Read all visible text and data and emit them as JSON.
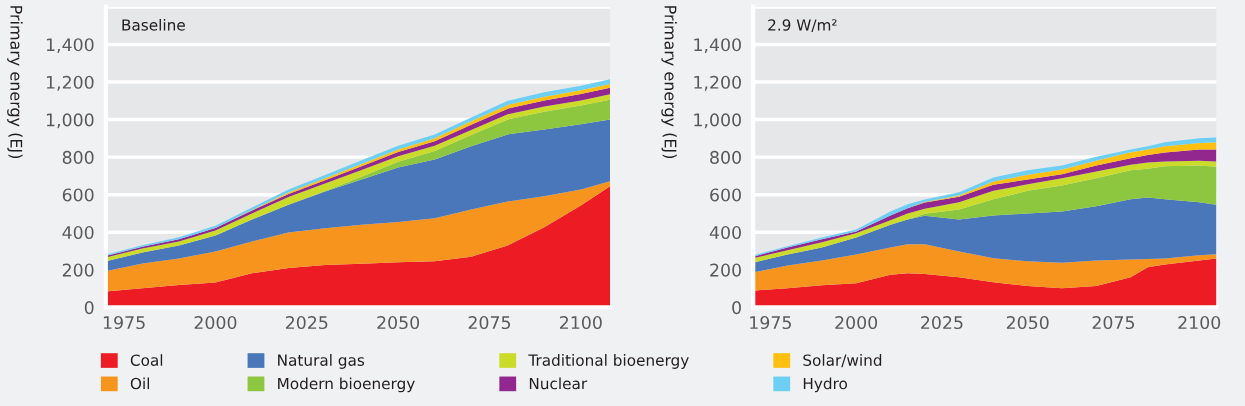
{
  "chart_data": [
    {
      "type": "area",
      "stacked": true,
      "title": "Baseline",
      "ylabel": "Primary energy (EJ)",
      "legend": "bottom",
      "grid": "y",
      "x": [
        1970,
        1980,
        1990,
        2000,
        2010,
        2020,
        2030,
        2040,
        2050,
        2060,
        2070,
        2080,
        2090,
        2100,
        2108
      ],
      "xlim": [
        1970,
        2108
      ],
      "xticks": [
        1975,
        2000,
        2025,
        2050,
        2075,
        2100
      ],
      "ylim": [
        0,
        1600
      ],
      "yticks": [
        {
          "value": 0,
          "label": "0"
        },
        {
          "value": 200,
          "label": "200"
        },
        {
          "value": 400,
          "label": "400"
        },
        {
          "value": 600,
          "label": "600"
        },
        {
          "value": 800,
          "label": "800"
        },
        {
          "value": 1000,
          "label": "1,000"
        },
        {
          "value": 1200,
          "label": "1,200"
        },
        {
          "value": 1400,
          "label": "1,400"
        },
        {
          "value": 1600,
          "label": null
        }
      ],
      "series": [
        {
          "name": "Coal",
          "color": "#ed1c24",
          "values": [
            85,
            102,
            119,
            132,
            181,
            209,
            226,
            232,
            240,
            245,
            270,
            330,
            426,
            543,
            645
          ]
        },
        {
          "name": "Oil",
          "color": "#f7941d",
          "values": [
            107,
            132,
            141,
            166,
            170,
            189,
            195,
            208,
            215,
            230,
            251,
            234,
            166,
            85,
            27
          ]
        },
        {
          "name": "Natural gas",
          "color": "#4a77ba",
          "values": [
            53,
            58,
            70,
            85,
            117,
            149,
            196,
            241,
            290,
            312,
            337,
            357,
            355,
            347,
            328
          ]
        },
        {
          "name": "Modern bioenergy",
          "color": "#8dc63f",
          "values": [
            0,
            0,
            0,
            0,
            0,
            0,
            2,
            15,
            30,
            45,
            60,
            80,
            95,
            100,
            105
          ]
        },
        {
          "name": "Traditional bioenergy",
          "color": "#cbdb2a",
          "values": [
            21,
            21,
            21,
            26,
            32,
            40,
            40,
            35,
            30,
            28,
            27,
            27,
            27,
            27,
            30
          ]
        },
        {
          "name": "Nuclear",
          "color": "#92278f",
          "values": [
            8,
            10,
            12,
            14,
            16,
            16,
            18,
            20,
            22,
            24,
            28,
            30,
            32,
            34,
            35
          ]
        },
        {
          "name": "Solar/wind",
          "color": "#fdc010",
          "values": [
            0,
            0,
            0,
            0,
            2,
            8,
            10,
            12,
            14,
            16,
            18,
            20,
            20,
            20,
            20
          ]
        },
        {
          "name": "Hydro",
          "color": "#6dcff6",
          "values": [
            6,
            8,
            10,
            12,
            14,
            16,
            18,
            20,
            20,
            20,
            20,
            22,
            24,
            24,
            25
          ]
        }
      ]
    },
    {
      "type": "area",
      "stacked": true,
      "title": "2.9 W/m²",
      "ylabel": "Primary energy (EJ)",
      "legend": "bottom",
      "grid": "y",
      "x": [
        1970,
        1980,
        1990,
        2000,
        2010,
        2015,
        2020,
        2030,
        2040,
        2050,
        2060,
        2070,
        2080,
        2085,
        2090,
        2100,
        2105
      ],
      "xlim": [
        1970,
        2105
      ],
      "xticks": [
        1975,
        2000,
        2025,
        2050,
        2075,
        2100
      ],
      "ylim": [
        0,
        1600
      ],
      "yticks": [
        {
          "value": 0,
          "label": "0"
        },
        {
          "value": 200,
          "label": "200"
        },
        {
          "value": 400,
          "label": "400"
        },
        {
          "value": 600,
          "label": "600"
        },
        {
          "value": 800,
          "label": "800"
        },
        {
          "value": 1000,
          "label": "1,000"
        },
        {
          "value": 1200,
          "label": "1,200"
        },
        {
          "value": 1400,
          "label": "1,400"
        },
        {
          "value": 1600,
          "label": null
        }
      ],
      "series": [
        {
          "name": "Coal",
          "color": "#ed1c24",
          "values": [
            89,
            102,
            117,
            128,
            174,
            181,
            177,
            160,
            134,
            113,
            102,
            113,
            160,
            213,
            228,
            249,
            260
          ]
        },
        {
          "name": "Oil",
          "color": "#f7941d",
          "values": [
            96,
            121,
            132,
            153,
            145,
            155,
            159,
            138,
            128,
            132,
            136,
            136,
            95,
            44,
            32,
            28,
            23
          ]
        },
        {
          "name": "Natural gas",
          "color": "#4a77ba",
          "values": [
            53,
            58,
            70,
            91,
            121,
            132,
            152,
            170,
            227,
            255,
            273,
            289,
            320,
            328,
            315,
            283,
            264
          ]
        },
        {
          "name": "Modern bioenergy",
          "color": "#8dc63f",
          "values": [
            0,
            0,
            0,
            0,
            0,
            0,
            11,
            53,
            86,
            121,
            138,
            149,
            155,
            153,
            176,
            195,
            202
          ]
        },
        {
          "name": "Traditional bioenergy",
          "color": "#cbdb2a",
          "values": [
            24,
            23,
            28,
            22,
            24,
            32,
            26,
            39,
            46,
            34,
            38,
            37,
            30,
            34,
            26,
            26,
            28
          ]
        },
        {
          "name": "Nuclear",
          "color": "#92278f",
          "values": [
            8,
            15,
            15,
            10,
            25,
            28,
            34,
            29,
            32,
            26,
            22,
            31,
            34,
            39,
            47,
            60,
            64
          ]
        },
        {
          "name": "Solar/wind",
          "color": "#fdc010",
          "values": [
            0,
            0,
            0,
            0,
            0,
            0,
            2,
            7,
            17,
            25,
            25,
            26,
            32,
            30,
            34,
            34,
            38
          ]
        },
        {
          "name": "Hydro",
          "color": "#6dcff6",
          "values": [
            7,
            7,
            10,
            11,
            22,
            21,
            13,
            17,
            21,
            24,
            21,
            21,
            15,
            17,
            21,
            25,
            25
          ]
        }
      ]
    }
  ]
}
